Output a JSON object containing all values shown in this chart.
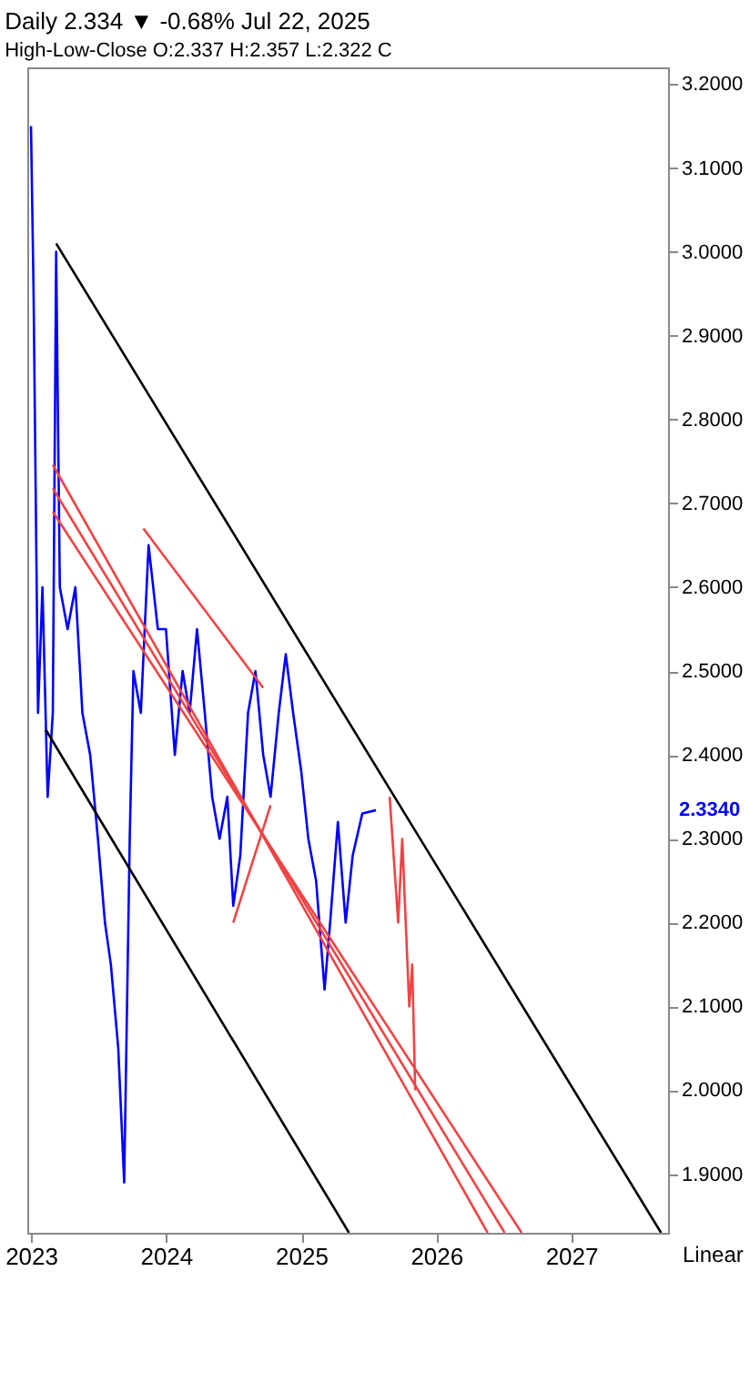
{
  "chart_data": {
    "type": "line",
    "title": "Daily  2.334 ▼ -0.68%  Jul 22, 2025",
    "subtitle": "High-Low-Close  O:2.337  H:2.357  L:2.322  C",
    "xlim": [
      "2022-12-22",
      "2027-09-20"
    ],
    "ylim": [
      1.83,
      3.22
    ],
    "xticks": [
      {
        "value": "2023-01-01",
        "label": "2023"
      },
      {
        "value": "2024-01-01",
        "label": "2024"
      },
      {
        "value": "2025-01-01",
        "label": "2025"
      },
      {
        "value": "2026-01-01",
        "label": "2026"
      },
      {
        "value": "2027-01-01",
        "label": "2027"
      }
    ],
    "yticks": [
      {
        "value": 1.9,
        "label": "1.9000"
      },
      {
        "value": 2.0,
        "label": "2.0000"
      },
      {
        "value": 2.1,
        "label": "2.1000"
      },
      {
        "value": 2.2,
        "label": "2.2000"
      },
      {
        "value": 2.3,
        "label": "2.3000"
      },
      {
        "value": 2.4,
        "label": "2.4000"
      },
      {
        "value": 2.5,
        "label": "2.5000"
      },
      {
        "value": 2.6,
        "label": "2.6000"
      },
      {
        "value": 2.7,
        "label": "2.7000"
      },
      {
        "value": 2.8,
        "label": "2.8000"
      },
      {
        "value": 2.9,
        "label": "2.9000"
      },
      {
        "value": 3.0,
        "label": "3.0000"
      },
      {
        "value": 3.1,
        "label": "3.1000"
      },
      {
        "value": 3.2,
        "label": "3.2000"
      }
    ],
    "grid": false,
    "tick_labels": "xy",
    "line_style": "solid",
    "series": [
      {
        "color": "#0000ff",
        "x": [
          "2023-01-01",
          "2023-01-08",
          "2023-01-20",
          "2023-02-01",
          "2023-02-15",
          "2023-03-01",
          "2023-03-10",
          "2023-03-20",
          "2023-04-10",
          "2023-05-01",
          "2023-05-20",
          "2023-06-10",
          "2023-07-01",
          "2023-07-20",
          "2023-08-05",
          "2023-08-25",
          "2023-09-10",
          "2023-09-25",
          "2023-10-05",
          "2023-10-25",
          "2023-11-15",
          "2023-12-10",
          "2024-01-01",
          "2024-01-25",
          "2024-02-15",
          "2024-03-05",
          "2024-03-25",
          "2024-04-15",
          "2024-05-05",
          "2024-05-25",
          "2024-06-15",
          "2024-07-01",
          "2024-07-20",
          "2024-08-10",
          "2024-08-30",
          "2024-09-20",
          "2024-10-10",
          "2024-11-01",
          "2024-11-20",
          "2024-12-10",
          "2025-01-01",
          "2025-01-20",
          "2025-02-10",
          "2025-03-05",
          "2025-03-20",
          "2025-04-10",
          "2025-05-01",
          "2025-05-20",
          "2025-06-15",
          "2025-07-22"
        ],
        "values": [
          3.15,
          2.95,
          2.45,
          2.6,
          2.35,
          2.45,
          3.0,
          2.6,
          2.55,
          2.6,
          2.45,
          2.4,
          2.3,
          2.2,
          2.15,
          2.05,
          1.89,
          2.3,
          2.5,
          2.45,
          2.65,
          2.55,
          2.55,
          2.4,
          2.5,
          2.45,
          2.55,
          2.45,
          2.35,
          2.3,
          2.35,
          2.22,
          2.28,
          2.45,
          2.5,
          2.4,
          2.35,
          2.45,
          2.52,
          2.45,
          2.38,
          2.3,
          2.25,
          2.12,
          2.2,
          2.32,
          2.2,
          2.28,
          2.33,
          2.334
        ]
      },
      {
        "color": "#ee4444",
        "x": [
          "2025-08-28",
          "2025-09-20",
          "2025-10-01",
          "2025-10-20",
          "2025-10-28",
          "2025-11-05"
        ],
        "values": [
          2.35,
          2.2,
          2.3,
          2.1,
          2.15,
          2.0
        ]
      },
      {
        "color": "#000000",
        "x": [
          "2023-03-10",
          "2027-09-01"
        ],
        "values": [
          3.01,
          1.83
        ]
      },
      {
        "color": "#000000",
        "x": [
          "2023-02-10",
          "2025-05-10"
        ],
        "values": [
          2.43,
          1.83
        ]
      },
      {
        "color": "#ee4444",
        "x": [
          "2023-03-01",
          "2026-05-20"
        ],
        "values": [
          2.746,
          1.83
        ]
      },
      {
        "color": "#ee4444",
        "x": [
          "2023-03-01",
          "2026-07-05"
        ],
        "values": [
          2.718,
          1.83
        ]
      },
      {
        "color": "#ee4444",
        "x": [
          "2023-03-01",
          "2026-08-20"
        ],
        "values": [
          2.69,
          1.83
        ]
      },
      {
        "color": "#ee4444",
        "x": [
          "2023-11-01",
          "2024-09-20"
        ],
        "values": [
          2.67,
          2.48
        ]
      },
      {
        "color": "#ee4444",
        "x": [
          "2024-07-01",
          "2024-10-10"
        ],
        "values": [
          2.2,
          2.34
        ]
      }
    ],
    "annotations": [
      "2.3340",
      "Linear"
    ]
  }
}
